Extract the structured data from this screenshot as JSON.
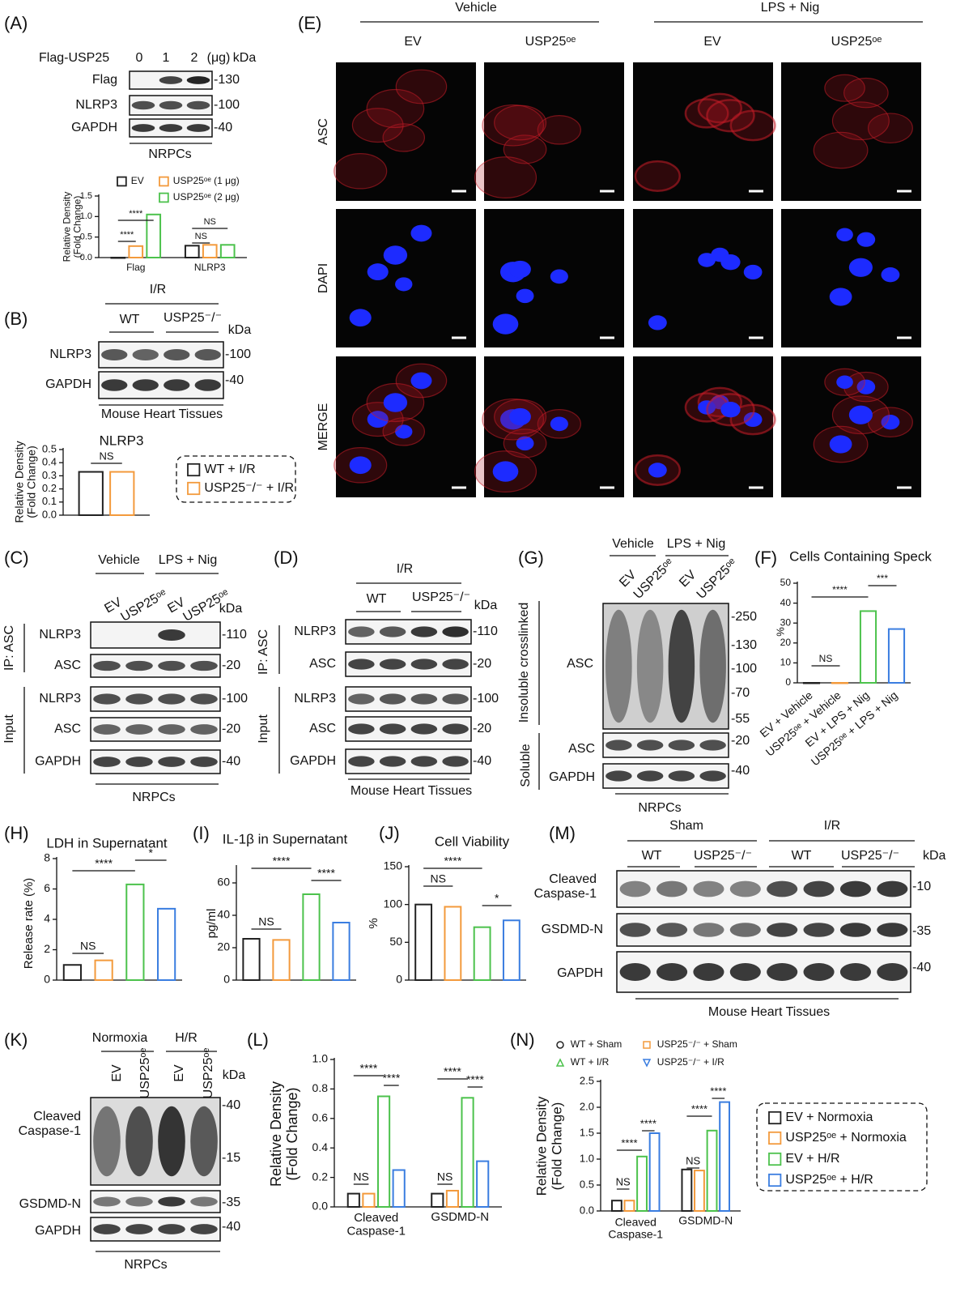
{
  "figure": {
    "A": {
      "label": "(A)",
      "header": "Flag-USP25",
      "doses": [
        "0",
        "1",
        "2"
      ],
      "unit": "(μg)",
      "kda": "kDa",
      "rows": [
        "Flag",
        "NLRP3",
        "GAPDH"
      ],
      "markers": [
        "-130",
        "-100",
        "-40"
      ],
      "footer": "NRPCs"
    },
    "B": {
      "label": "(B)",
      "condition": "I/R",
      "groups": [
        "WT",
        "USP25⁻/⁻"
      ],
      "kda": "kDa",
      "rows": [
        "NLRP3",
        "GAPDH"
      ],
      "markers": [
        "-100",
        "-40"
      ],
      "footer": "Mouse Heart Tissues"
    },
    "C": {
      "label": "(C)",
      "conditions": [
        "Vehicle",
        "LPS + Nig"
      ],
      "lanes": [
        "EV",
        "USP25ᵒᵉ",
        "EV",
        "USP25ᵒᵉ"
      ],
      "kda": "kDa",
      "ip": "IP: ASC",
      "input": "Input",
      "rows": [
        "NLRP3",
        "ASC",
        "NLRP3",
        "ASC",
        "GAPDH"
      ],
      "markers": [
        "-110",
        "-20",
        "-100",
        "-20",
        "-40"
      ],
      "footer": "NRPCs"
    },
    "D": {
      "label": "(D)",
      "condition": "I/R",
      "groups": [
        "WT",
        "USP25⁻/⁻"
      ],
      "kda": "kDa",
      "ip": "IP: ASC",
      "input": "Input",
      "rows": [
        "NLRP3",
        "ASC",
        "NLRP3",
        "ASC",
        "GAPDH"
      ],
      "markers": [
        "-110",
        "-20",
        "-100",
        "-20",
        "-40"
      ],
      "footer": "Mouse Heart Tissues"
    },
    "E": {
      "label": "(E)",
      "conditions": [
        "Vehicle",
        "LPS + Nig"
      ],
      "columns": [
        "EV",
        "USP25ᵒᵉ",
        "EV",
        "USP25ᵒᵉ"
      ],
      "rows": [
        "ASC",
        "DAPI",
        "MERGE"
      ]
    },
    "F": {
      "label": "(F)"
    },
    "G": {
      "label": "(G)",
      "conditions": [
        "Vehicle",
        "LPS + Nig"
      ],
      "lanes": [
        "EV",
        "USP25ᵒᵉ",
        "EV",
        "USP25ᵒᵉ"
      ],
      "insoluble": "Insoluble crosslinked",
      "soluble": "Soluble",
      "rows": [
        "ASC",
        "ASC",
        "GAPDH"
      ],
      "markers": [
        "-250",
        "-130",
        "-100",
        "-70",
        "-55",
        "-20",
        "-40"
      ],
      "footer": "NRPCs"
    },
    "H": {
      "label": "(H)"
    },
    "I": {
      "label": "(I)"
    },
    "J": {
      "label": "(J)"
    },
    "K": {
      "label": "(K)",
      "conditions": [
        "Normoxia",
        "H/R"
      ],
      "lanes": [
        "EV",
        "USP25ᵒᵉ",
        "EV",
        "USP25ᵒᵉ"
      ],
      "kda": "kDa",
      "rows": [
        "Cleaved\nCaspase-1",
        "GSDMD-N",
        "GAPDH"
      ],
      "markers": [
        "-40",
        "-15",
        "-35",
        "-40"
      ],
      "footer": "NRPCs"
    },
    "L": {
      "label": "(L)"
    },
    "M": {
      "label": "(M)",
      "conditions": [
        "Sham",
        "I/R"
      ],
      "groups": [
        "WT",
        "USP25⁻/⁻",
        "WT",
        "USP25⁻/⁻"
      ],
      "kda": "kDa",
      "rows": [
        "Cleaved\nCaspase-1",
        "GSDMD-N",
        "GAPDH"
      ],
      "markers": [
        "-10",
        "-35",
        "-40"
      ],
      "footer": "Mouse Heart Tissues"
    },
    "N": {
      "label": "(N)"
    }
  },
  "chart_data": [
    {
      "type": "bar",
      "categories": [
        "Flag",
        "NLRP3"
      ],
      "ylabel": "Relative Density\n(Fold Change)",
      "ylim": [
        0,
        1.5
      ],
      "yticks": [
        {
          "value": 0,
          "label": "0.0"
        },
        0.5,
        {
          "value": 1,
          "label": "1.0"
        },
        1.5
      ],
      "series": [
        {
          "name": "EV",
          "color": "#222222",
          "values": [
            0,
            0.29
          ]
        },
        {
          "name": "USP25ᵒᵉ (1 μg)",
          "color": "#f39a3c",
          "values": [
            0.28,
            0.31
          ]
        },
        {
          "name": "USP25ᵒᵉ (2 μg)",
          "color": "#4cc24c",
          "values": [
            1.05,
            0.31
          ]
        }
      ],
      "annotations": [
        "****",
        "****",
        "NS",
        "NS"
      ]
    },
    {
      "type": "bar",
      "title": "NLRP3",
      "categories": [
        null
      ],
      "ylabel": "Relative Density\n(Fold Change)",
      "ylim": [
        0,
        0.5
      ],
      "yticks": [
        {
          "value": 0,
          "label": "0.0"
        },
        0.1,
        0.2,
        0.3,
        0.4,
        0.5
      ],
      "series": [
        {
          "name": "WT + I/R",
          "color": "#222222",
          "values": [
            0.33
          ]
        },
        {
          "name": "USP25⁻/⁻ + I/R",
          "color": "#f39a3c",
          "values": [
            0.33
          ]
        }
      ],
      "annotations": [
        "NS"
      ]
    },
    {
      "type": "bar",
      "title": "Cells Containing Speck",
      "categories": [
        "EV + Vehicle",
        "USP25ᵒᵉ + Vehicle",
        "EV + LPS + Nig",
        "USP25ᵒᵉ + LPS + Nig"
      ],
      "ylabel": "%",
      "ylim": [
        0,
        50
      ],
      "yticks": [
        0,
        10,
        20,
        30,
        40,
        50
      ],
      "values": [
        0,
        0,
        36,
        27
      ],
      "colors": [
        "#222222",
        "#f39a3c",
        "#4cc24c",
        "#3a7de0"
      ],
      "annotations": [
        "****",
        "***",
        "NS"
      ]
    },
    {
      "type": "bar",
      "title": "LDH in Supernatant",
      "categories": [
        null,
        null,
        null,
        null
      ],
      "ylabel": "Release rate (%)",
      "ylim": [
        0,
        8
      ],
      "yticks": [
        0,
        2,
        4,
        6,
        8
      ],
      "values": [
        1.0,
        1.3,
        6.3,
        4.7
      ],
      "colors": [
        "#222222",
        "#f39a3c",
        "#4cc24c",
        "#3a7de0"
      ],
      "annotations": [
        "****",
        "*",
        "NS"
      ]
    },
    {
      "type": "bar",
      "title": "IL-1β in Supernatant",
      "categories": [
        null,
        null,
        null,
        null
      ],
      "ylabel": "pg/ml",
      "ylim": [
        0,
        70
      ],
      "yticks": [
        0,
        20,
        40,
        60
      ],
      "values": [
        25.5,
        24.8,
        53,
        35.5
      ],
      "colors": [
        "#222222",
        "#f39a3c",
        "#4cc24c",
        "#3a7de0"
      ],
      "annotations": [
        "****",
        "****",
        "NS"
      ]
    },
    {
      "type": "bar",
      "title": "Cell Viability",
      "categories": [
        null,
        null,
        null,
        null
      ],
      "ylabel": "%",
      "ylim": [
        0,
        150
      ],
      "yticks": [
        0,
        50,
        100,
        150
      ],
      "values": [
        100,
        97,
        70,
        79
      ],
      "colors": [
        "#222222",
        "#f39a3c",
        "#4cc24c",
        "#3a7de0"
      ],
      "annotations": [
        "****",
        "NS",
        "*"
      ]
    },
    {
      "type": "bar",
      "categories": [
        "Cleaved\nCaspase-1",
        "GSDMD-N"
      ],
      "ylabel": "Relative Density\n(Fold Change)",
      "ylim": [
        0,
        1.0
      ],
      "yticks": [
        {
          "value": 0,
          "label": "0.0"
        },
        0.2,
        0.4,
        0.6,
        0.8,
        {
          "value": 1,
          "label": "1.0"
        }
      ],
      "series": [
        {
          "name": "EV + Normoxia",
          "color": "#222222",
          "values": [
            0.09,
            0.09
          ]
        },
        {
          "name": "USP25ᵒᵉ + Normoxia",
          "color": "#f39a3c",
          "values": [
            0.09,
            0.11
          ]
        },
        {
          "name": "EV + H/R",
          "color": "#4cc24c",
          "values": [
            0.75,
            0.74
          ]
        },
        {
          "name": "USP25ᵒᵉ + H/R",
          "color": "#3a7de0",
          "values": [
            0.25,
            0.31
          ]
        }
      ],
      "annotations": [
        "NS",
        "****",
        "****",
        "NS",
        "****",
        "****"
      ]
    },
    {
      "type": "bar",
      "categories": [
        "Cleaved\nCaspase-1",
        "GSDMD-N"
      ],
      "ylabel": "Relative Density\n(Fold Change)",
      "ylim": [
        0,
        2.5
      ],
      "yticks": [
        {
          "value": 0,
          "label": "0.0"
        },
        0.5,
        {
          "value": 1,
          "label": "1.0"
        },
        1.5,
        {
          "value": 2,
          "label": "2.0"
        },
        2.5
      ],
      "series": [
        {
          "name": "WT + Sham",
          "color": "#222222",
          "values": [
            0.2,
            0.8
          ]
        },
        {
          "name": "USP25⁻/⁻ + Sham",
          "color": "#f39a3c",
          "values": [
            0.2,
            0.78
          ]
        },
        {
          "name": "WT + I/R",
          "color": "#4cc24c",
          "values": [
            1.05,
            1.55
          ]
        },
        {
          "name": "USP25⁻/⁻ + I/R",
          "color": "#3a7de0",
          "values": [
            1.5,
            2.1
          ]
        }
      ],
      "annotations": [
        "NS",
        "****",
        "****",
        "NS",
        "****",
        "****"
      ]
    }
  ]
}
